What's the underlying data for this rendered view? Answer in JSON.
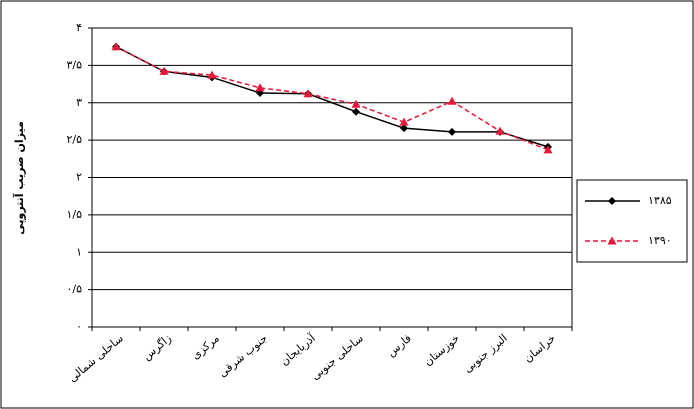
{
  "chart_data": {
    "type": "line",
    "y_label": "میزان ضریب آنتروپی",
    "categories": [
      "ساحلی شمالی",
      "زاگرس",
      "مرکزی",
      "جنوب شرقی",
      "آذربایجان",
      "ساحلی جنوبی",
      "فارس",
      "خوزستان",
      "البرز جنوبی",
      "خراسان"
    ],
    "series": [
      {
        "name": "۱۳۸۵",
        "color": "#000000",
        "marker": "diamond",
        "dash": false,
        "values": [
          3.75,
          3.42,
          3.34,
          3.13,
          3.12,
          2.88,
          2.66,
          2.61,
          2.61,
          2.41
        ]
      },
      {
        "name": "۱۳۹۰",
        "color": "#e8173a",
        "marker": "triangle",
        "dash": true,
        "values": [
          3.75,
          3.42,
          3.37,
          3.2,
          3.12,
          2.98,
          2.74,
          3.02,
          2.62,
          2.37
        ]
      }
    ],
    "ylim": [
      0,
      4
    ],
    "yticks": [
      {
        "value": 0,
        "label": "۰"
      },
      {
        "value": 0.5,
        "label": "۰/۵"
      },
      {
        "value": 1,
        "label": "۱"
      },
      {
        "value": 1.5,
        "label": "۱/۵"
      },
      {
        "value": 2,
        "label": "۲"
      },
      {
        "value": 2.5,
        "label": "۲/۵"
      },
      {
        "value": 3,
        "label": "۳"
      },
      {
        "value": 3.5,
        "label": "۳/۵"
      },
      {
        "value": 4,
        "label": "۴"
      }
    ],
    "grid": true,
    "legend": "right"
  }
}
